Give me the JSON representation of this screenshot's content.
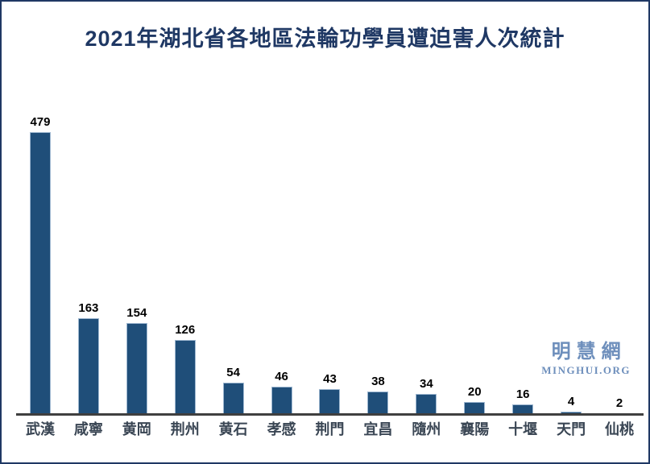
{
  "frame": {
    "border_color": "#1F3864",
    "background_color": "#FFFFFF"
  },
  "title": {
    "text": "2021年湖北省各地區法輪功學員遭迫害人次統計",
    "color": "#1F3864"
  },
  "chart_data": {
    "type": "bar",
    "title": "2021年湖北省各地區法輪功學員遭迫害人次統計",
    "categories": [
      "武漢",
      "咸寧",
      "黄岡",
      "荆州",
      "黄石",
      "孝感",
      "荆門",
      "宜昌",
      "隨州",
      "襄陽",
      "十堰",
      "天門",
      "仙桃"
    ],
    "values": [
      479,
      163,
      154,
      126,
      54,
      46,
      43,
      38,
      34,
      20,
      16,
      4,
      2
    ],
    "xlabel": "",
    "ylabel": "",
    "ylim": [
      0,
      500
    ],
    "grid": false,
    "legend_position": "none",
    "data_labels": "above-bars",
    "bar_color": "#1F4E79",
    "bar_border_color": "#9FB8D1",
    "axis_line_color": "#3F3F3F",
    "data_label_color": "#000000",
    "category_label_color": "#3A4654"
  },
  "watermark": {
    "cjk": "明慧網",
    "latin": "MINGHUI.ORG",
    "color": "#6E8FBC"
  }
}
